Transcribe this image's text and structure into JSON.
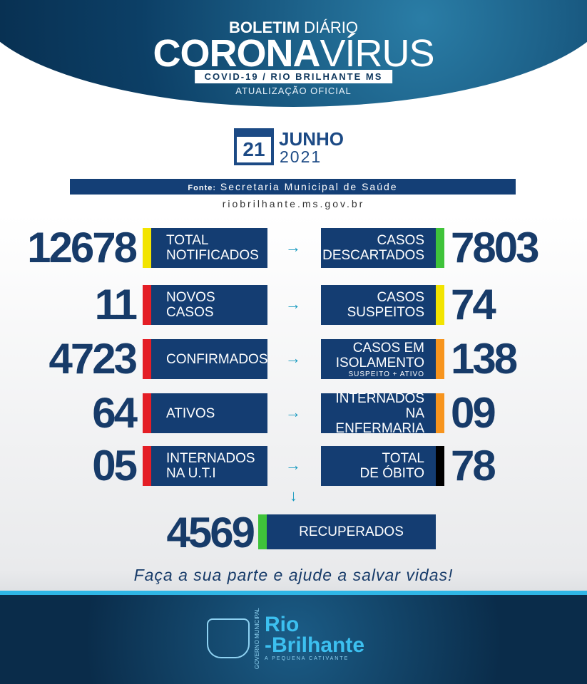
{
  "header": {
    "title_bold": "BOLETIM",
    "title_light": "DIÁRIO",
    "main_bold": "CORONA",
    "main_light": "VÍRUS",
    "subtitle": "COVID-19 / RIO BRILHANTE MS",
    "update": "ATUALIZAÇÃO OFICIAL"
  },
  "date": {
    "day": "21",
    "month": "JUNHO",
    "year": "2021"
  },
  "source": {
    "label": "Fonte:",
    "value": "Secretaria Municipal de Saúde",
    "url": "riobrilhante.ms.gov.br"
  },
  "left": [
    {
      "value": "12678",
      "line1": "TOTAL",
      "line2": "NOTIFICADOS",
      "color": "#f2e400"
    },
    {
      "value": "11",
      "line1": "NOVOS",
      "line2": "CASOS",
      "color": "#e41e26"
    },
    {
      "value": "4723",
      "line1": "CONFIRMADOS",
      "line2": "",
      "color": "#e41e26"
    },
    {
      "value": "64",
      "line1": "ATIVOS",
      "line2": "",
      "color": "#e41e26"
    },
    {
      "value": "05",
      "line1": "INTERNADOS",
      "line2": "NA U.T.I",
      "color": "#e41e26"
    }
  ],
  "right": [
    {
      "value": "7803",
      "line1": "CASOS",
      "line2": "DESCARTADOS",
      "note": "",
      "color": "#3fc33a"
    },
    {
      "value": "74",
      "line1": "CASOS",
      "line2": "SUSPEITOS",
      "note": "",
      "color": "#f2e400"
    },
    {
      "value": "138",
      "line1": "CASOS EM",
      "line2": "ISOLAMENTO",
      "note": "SUSPEITO + ATIVO",
      "color": "#f7941d"
    },
    {
      "value": "09",
      "line1": "INTERNADOS",
      "line2": "NA ENFERMARIA",
      "note": "",
      "color": "#f7941d"
    },
    {
      "value": "78",
      "line1": "TOTAL",
      "line2": "DE ÓBITO",
      "note": "",
      "color": "#000000"
    }
  ],
  "recovered": {
    "value": "4569",
    "label": "RECUPERADOS",
    "color": "#3fc33a"
  },
  "arrow": "→",
  "arrow_down": "↓",
  "tagline": "Faça a sua parte e ajude a salvar vidas!",
  "footer": {
    "gov": "GOVERNO MUNICIPAL",
    "brand1": "Rio",
    "brand2": "-Brilhante",
    "slogan": "A PEQUENA CATIVANTE"
  }
}
